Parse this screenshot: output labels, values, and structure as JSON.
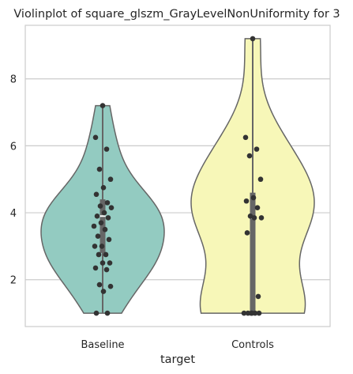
{
  "chart_data": {
    "type": "violin",
    "title": "Violinplot of square_glszm_GrayLevelNonUniformity for 3",
    "xlabel": "target",
    "ylabel": "",
    "categories": [
      "Baseline",
      "Controls"
    ],
    "yticks": [
      2,
      4,
      6,
      8
    ],
    "ylim": [
      0.6,
      9.6
    ],
    "grid": "horizontal",
    "colors": {
      "Baseline": "#93cbc1",
      "Controls": "#f7f7b8",
      "outline": "#666666",
      "points": "#333333"
    },
    "series": [
      {
        "name": "Baseline",
        "range": [
          1.0,
          7.2
        ],
        "quartiles": [
          2.8,
          3.9,
          4.4
        ],
        "points": [
          7.2,
          6.25,
          5.9,
          5.3,
          5.0,
          4.75,
          4.55,
          4.3,
          4.2,
          4.15,
          4.0,
          3.9,
          3.85,
          3.7,
          3.6,
          3.5,
          3.3,
          3.2,
          3.0,
          3.0,
          2.75,
          2.75,
          2.5,
          2.5,
          2.35,
          2.3,
          1.85,
          1.8,
          1.65,
          1.0,
          1.0
        ]
      },
      {
        "name": "Controls",
        "range": [
          1.0,
          9.2
        ],
        "quartiles": [
          1.0,
          3.85,
          4.6
        ],
        "points": [
          9.2,
          6.25,
          5.9,
          5.7,
          5.0,
          4.45,
          4.35,
          4.15,
          3.9,
          3.85,
          3.85,
          3.4,
          1.5,
          1.0,
          1.0,
          1.0,
          1.0,
          1.0,
          1.0
        ]
      }
    ]
  }
}
